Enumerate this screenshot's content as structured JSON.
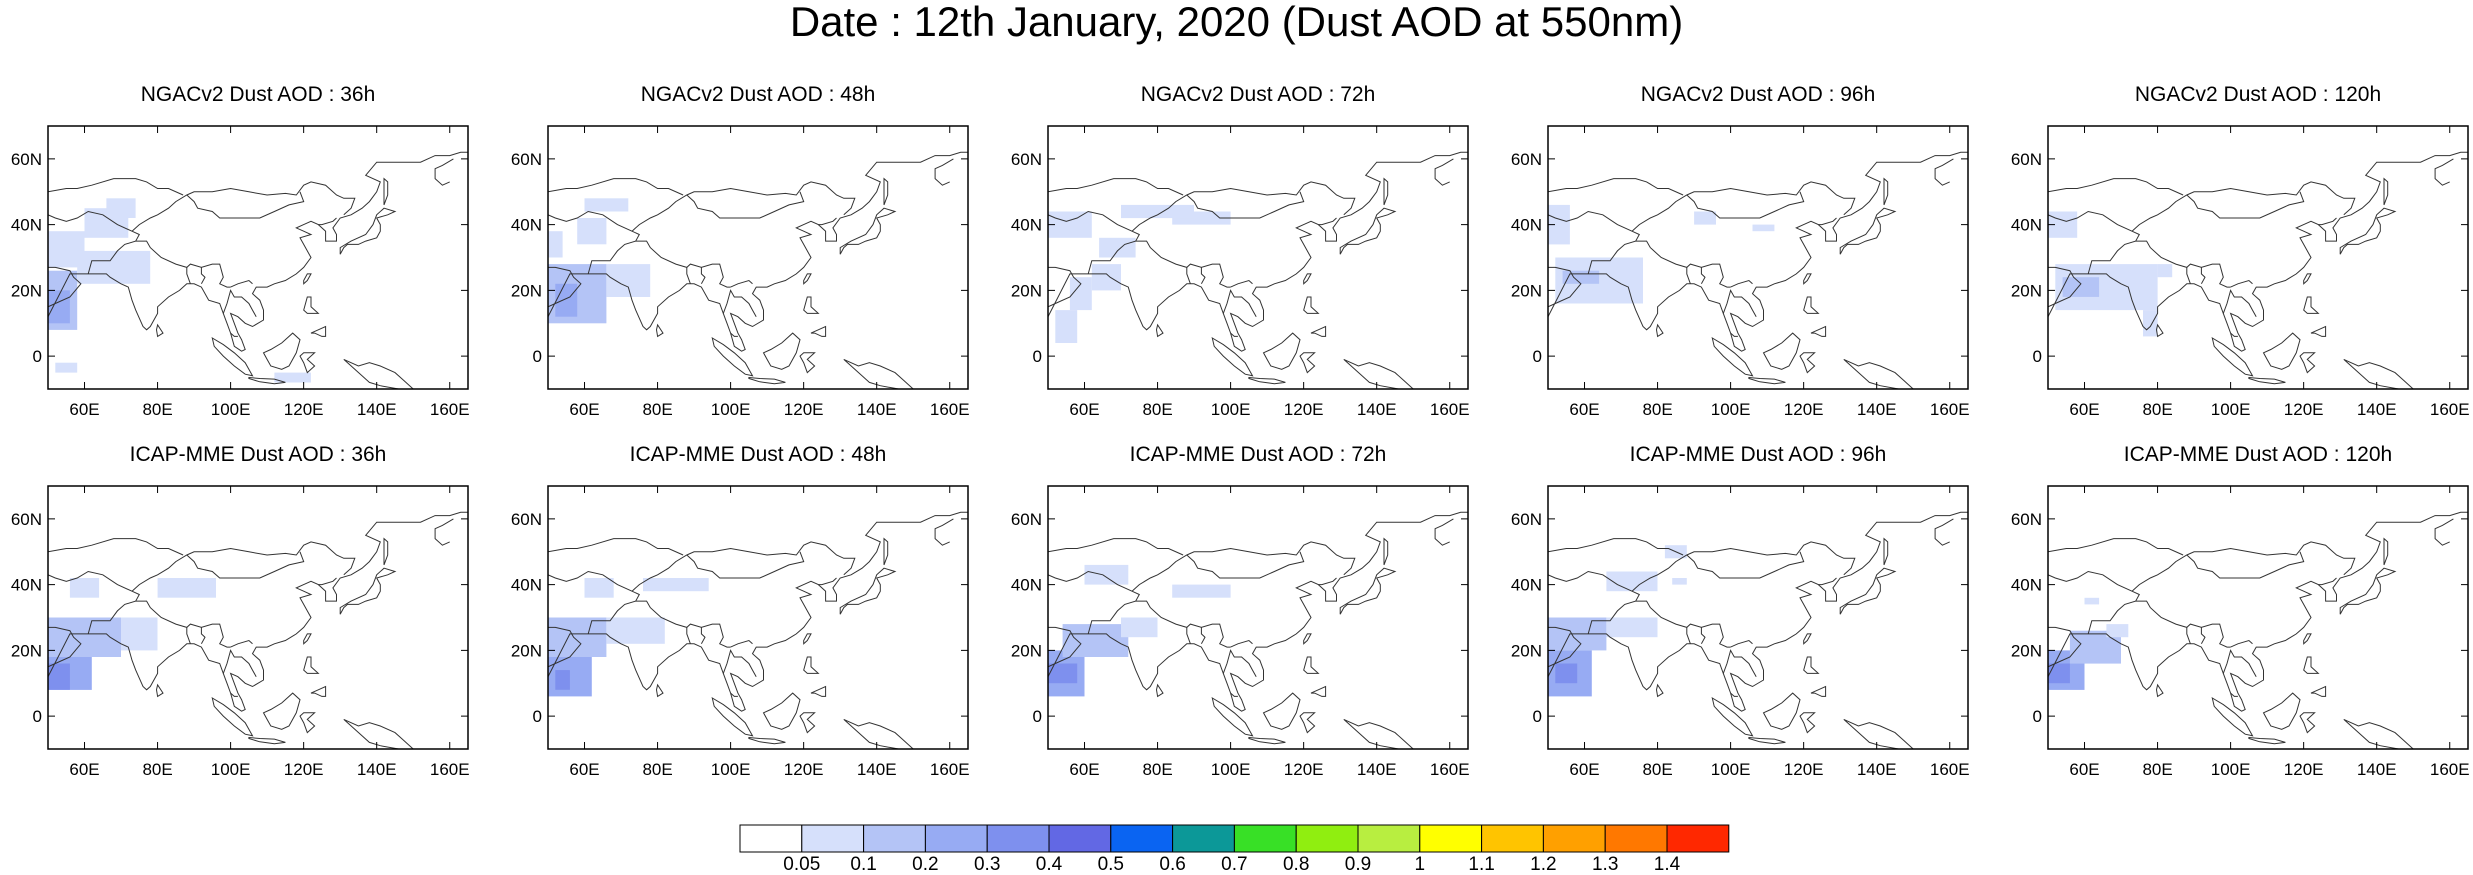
{
  "title": "Date : 12th January, 2020 (Dust AOD at 550nm)",
  "map_extent": {
    "lon_min": 50,
    "lon_max": 165,
    "lat_min": -10,
    "lat_max": 70
  },
  "x_ticks": [
    "60E",
    "80E",
    "100E",
    "120E",
    "140E",
    "160E"
  ],
  "x_tick_values": [
    60,
    80,
    100,
    120,
    140,
    160
  ],
  "y_ticks": [
    "0",
    "20N",
    "40N",
    "60N"
  ],
  "y_tick_values": [
    0,
    20,
    40,
    60
  ],
  "panels": [
    {
      "title": "NGACv2 Dust AOD : 36h"
    },
    {
      "title": "NGACv2 Dust AOD : 48h"
    },
    {
      "title": "NGACv2 Dust AOD : 72h"
    },
    {
      "title": "NGACv2 Dust AOD : 96h"
    },
    {
      "title": "NGACv2 Dust AOD : 120h"
    },
    {
      "title": "ICAP-MME Dust AOD : 36h"
    },
    {
      "title": "ICAP-MME Dust AOD : 48h"
    },
    {
      "title": "ICAP-MME Dust AOD : 72h"
    },
    {
      "title": "ICAP-MME Dust AOD : 96h"
    },
    {
      "title": "ICAP-MME Dust AOD : 120h"
    }
  ],
  "colorbar": {
    "labels": [
      "0.05",
      "0.1",
      "0.2",
      "0.3",
      "0.4",
      "0.5",
      "0.6",
      "0.7",
      "0.8",
      "0.9",
      "1",
      "1.1",
      "1.2",
      "1.3",
      "1.4"
    ],
    "colors": [
      "#ffffff",
      "#d6e0fb",
      "#b4c4f6",
      "#97abf3",
      "#7e90ee",
      "#6268e4",
      "#0a64f2",
      "#0c9898",
      "#38e026",
      "#90ee10",
      "#b8ee40",
      "#ffff00",
      "#ffc400",
      "#ffa000",
      "#ff7800",
      "#ff2800"
    ]
  }
}
